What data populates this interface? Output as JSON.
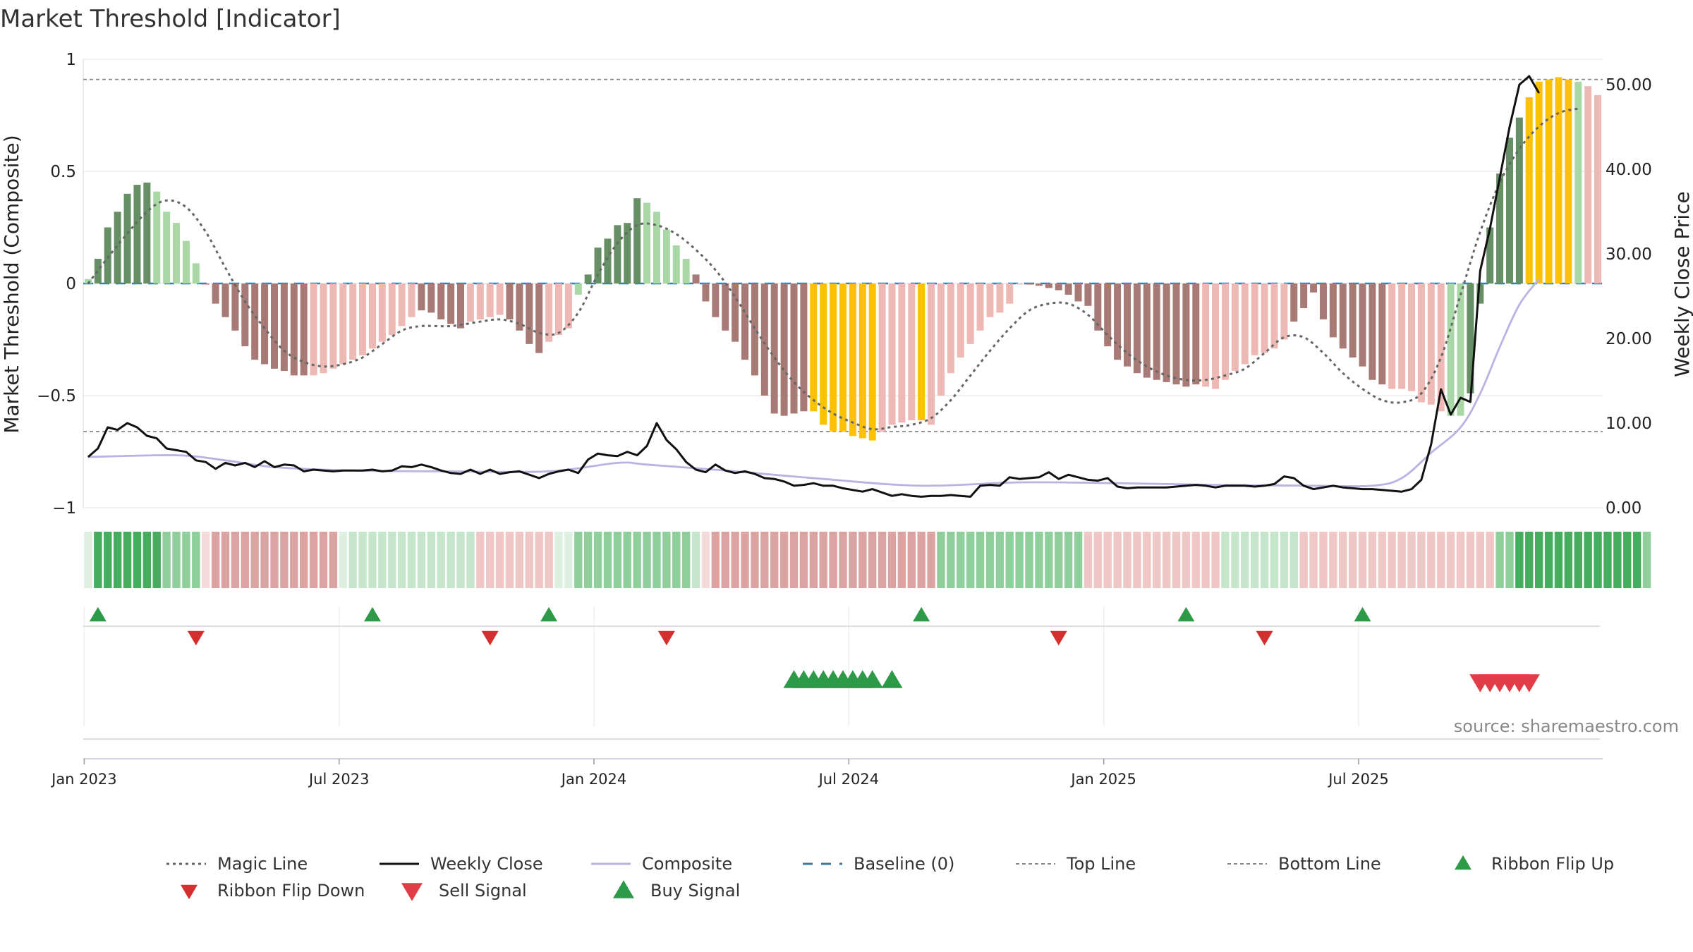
{
  "chart_data": {
    "type": "bar",
    "title": "Market Threshold [Indicator]",
    "ylabel_left": "Market Threshold (Composite)",
    "ylabel_right": "Weekly Close Price",
    "ylim_left": [
      -1,
      1
    ],
    "ylim_right": [
      0,
      53
    ],
    "yticks_left": [
      {
        "v": 1,
        "t": "1"
      },
      {
        "v": 0.5,
        "t": "0.5"
      },
      {
        "v": 0,
        "t": "0"
      },
      {
        "v": -0.5,
        "t": "−0.5"
      },
      {
        "v": -1,
        "t": "−1"
      }
    ],
    "yticks_right": [
      {
        "v": 50,
        "t": "50.00"
      },
      {
        "v": 40,
        "t": "40.00"
      },
      {
        "v": 30,
        "t": "30.00"
      },
      {
        "v": 20,
        "t": "20.00"
      },
      {
        "v": 10,
        "t": "10.00"
      },
      {
        "v": 0,
        "t": "0.00"
      }
    ],
    "xticks": [
      {
        "week": 1,
        "label": "Jan 2023"
      },
      {
        "week": 27,
        "label": "Jul 2023"
      },
      {
        "week": 53,
        "label": "Jan 2024"
      },
      {
        "week": 79,
        "label": "Jul 2024"
      },
      {
        "week": 105,
        "label": "Jan 2025"
      },
      {
        "week": 131,
        "label": "Jul 2025"
      }
    ],
    "top_line": 0.91,
    "bottom_line": -0.66,
    "baseline": 0,
    "composite": [
      0.02,
      0.11,
      0.25,
      0.32,
      0.4,
      0.44,
      0.45,
      0.41,
      0.32,
      0.27,
      0.19,
      0.09,
      0.0,
      -0.09,
      -0.15,
      -0.21,
      -0.28,
      -0.34,
      -0.36,
      -0.38,
      -0.39,
      -0.41,
      -0.41,
      -0.41,
      -0.4,
      -0.38,
      -0.36,
      -0.34,
      -0.32,
      -0.29,
      -0.26,
      -0.23,
      -0.19,
      -0.15,
      -0.12,
      -0.13,
      -0.16,
      -0.18,
      -0.2,
      -0.17,
      -0.16,
      -0.15,
      -0.14,
      -0.16,
      -0.21,
      -0.27,
      -0.31,
      -0.26,
      -0.23,
      -0.2,
      -0.05,
      0.04,
      0.16,
      0.2,
      0.26,
      0.27,
      0.38,
      0.36,
      0.32,
      0.24,
      0.17,
      0.11,
      0.04,
      -0.08,
      -0.15,
      -0.21,
      -0.26,
      -0.34,
      -0.41,
      -0.5,
      -0.58,
      -0.59,
      -0.58,
      -0.57,
      -0.57,
      -0.63,
      -0.66,
      -0.66,
      -0.68,
      -0.69,
      -0.7,
      -0.66,
      -0.63,
      -0.62,
      -0.61,
      -0.61,
      -0.63,
      -0.5,
      -0.4,
      -0.33,
      -0.27,
      -0.21,
      -0.15,
      -0.13,
      -0.09,
      0.0,
      0.0,
      -0.01,
      -0.02,
      -0.03,
      -0.05,
      -0.08,
      -0.1,
      -0.21,
      -0.28,
      -0.34,
      -0.37,
      -0.4,
      -0.42,
      -0.43,
      -0.44,
      -0.45,
      -0.46,
      -0.45,
      -0.46,
      -0.47,
      -0.43,
      -0.39,
      -0.36,
      -0.32,
      -0.31,
      -0.29,
      -0.25,
      -0.17,
      -0.11,
      -0.04,
      -0.16,
      -0.24,
      -0.29,
      -0.33,
      -0.37,
      -0.43,
      -0.45,
      -0.47,
      -0.47,
      -0.48,
      -0.53,
      -0.54,
      -0.57,
      -0.59,
      -0.59,
      -0.49,
      -0.09,
      0.25,
      0.49,
      0.65,
      0.74,
      0.83,
      0.9,
      0.91,
      0.92,
      0.91,
      0.9,
      0.88,
      0.84
    ],
    "regimes": [
      {
        "from": 1,
        "to": 1,
        "kind": "pos_light"
      },
      {
        "from": 2,
        "to": 7,
        "kind": "pos_dark"
      },
      {
        "from": 8,
        "to": 12,
        "kind": "pos_light"
      },
      {
        "from": 13,
        "to": 23,
        "kind": "neg_dark"
      },
      {
        "from": 24,
        "to": 34,
        "kind": "neg_light"
      },
      {
        "from": 35,
        "to": 39,
        "kind": "neg_dark"
      },
      {
        "from": 40,
        "to": 43,
        "kind": "neg_light"
      },
      {
        "from": 44,
        "to": 47,
        "kind": "neg_dark"
      },
      {
        "from": 48,
        "to": 50,
        "kind": "neg_light"
      },
      {
        "from": 51,
        "to": 51,
        "kind": "pos_light"
      },
      {
        "from": 52,
        "to": 57,
        "kind": "pos_dark"
      },
      {
        "from": 58,
        "to": 62,
        "kind": "pos_light"
      },
      {
        "from": 63,
        "to": 74,
        "kind": "neg_dark"
      },
      {
        "from": 75,
        "to": 81,
        "kind": "extreme"
      },
      {
        "from": 82,
        "to": 85,
        "kind": "neg_light"
      },
      {
        "from": 86,
        "to": 86,
        "kind": "extreme"
      },
      {
        "from": 87,
        "to": 96,
        "kind": "neg_light"
      },
      {
        "from": 97,
        "to": 99,
        "kind": "neg_dark"
      },
      {
        "from": 100,
        "to": 102,
        "kind": "neg_dark"
      },
      {
        "from": 103,
        "to": 114,
        "kind": "neg_dark"
      },
      {
        "from": 115,
        "to": 123,
        "kind": "neg_light"
      },
      {
        "from": 124,
        "to": 133,
        "kind": "neg_dark"
      },
      {
        "from": 134,
        "to": 139,
        "kind": "neg_light"
      },
      {
        "from": 140,
        "to": 141,
        "kind": "pos_light"
      },
      {
        "from": 142,
        "to": 147,
        "kind": "pos_dark"
      },
      {
        "from": 148,
        "to": 152,
        "kind": "extreme"
      },
      {
        "from": 153,
        "to": 153,
        "kind": "pos_light"
      }
    ],
    "magic_line": [
      {
        "w": 1,
        "v": 0.0
      },
      {
        "w": 4,
        "v": 0.17
      },
      {
        "w": 7,
        "v": 0.32
      },
      {
        "w": 9,
        "v": 0.37
      },
      {
        "w": 11,
        "v": 0.34
      },
      {
        "w": 13,
        "v": 0.23
      },
      {
        "w": 15,
        "v": 0.07
      },
      {
        "w": 17,
        "v": -0.08
      },
      {
        "w": 19,
        "v": -0.2
      },
      {
        "w": 21,
        "v": -0.3
      },
      {
        "w": 23,
        "v": -0.35
      },
      {
        "w": 25,
        "v": -0.37
      },
      {
        "w": 27,
        "v": -0.36
      },
      {
        "w": 29,
        "v": -0.33
      },
      {
        "w": 31,
        "v": -0.27
      },
      {
        "w": 33,
        "v": -0.21
      },
      {
        "w": 35,
        "v": -0.19
      },
      {
        "w": 38,
        "v": -0.19
      },
      {
        "w": 41,
        "v": -0.17
      },
      {
        "w": 43,
        "v": -0.16
      },
      {
        "w": 45,
        "v": -0.18
      },
      {
        "w": 47,
        "v": -0.22
      },
      {
        "w": 49,
        "v": -0.22
      },
      {
        "w": 51,
        "v": -0.13
      },
      {
        "w": 53,
        "v": 0.04
      },
      {
        "w": 55,
        "v": 0.18
      },
      {
        "w": 57,
        "v": 0.26
      },
      {
        "w": 59,
        "v": 0.26
      },
      {
        "w": 61,
        "v": 0.22
      },
      {
        "w": 63,
        "v": 0.15
      },
      {
        "w": 65,
        "v": 0.06
      },
      {
        "w": 67,
        "v": -0.06
      },
      {
        "w": 69,
        "v": -0.2
      },
      {
        "w": 71,
        "v": -0.33
      },
      {
        "w": 73,
        "v": -0.44
      },
      {
        "w": 75,
        "v": -0.52
      },
      {
        "w": 77,
        "v": -0.58
      },
      {
        "w": 79,
        "v": -0.62
      },
      {
        "w": 81,
        "v": -0.65
      },
      {
        "w": 83,
        "v": -0.64
      },
      {
        "w": 85,
        "v": -0.63
      },
      {
        "w": 87,
        "v": -0.6
      },
      {
        "w": 89,
        "v": -0.52
      },
      {
        "w": 91,
        "v": -0.41
      },
      {
        "w": 93,
        "v": -0.3
      },
      {
        "w": 95,
        "v": -0.2
      },
      {
        "w": 97,
        "v": -0.12
      },
      {
        "w": 99,
        "v": -0.09
      },
      {
        "w": 101,
        "v": -0.09
      },
      {
        "w": 103,
        "v": -0.14
      },
      {
        "w": 105,
        "v": -0.23
      },
      {
        "w": 107,
        "v": -0.31
      },
      {
        "w": 109,
        "v": -0.37
      },
      {
        "w": 111,
        "v": -0.41
      },
      {
        "w": 113,
        "v": -0.43
      },
      {
        "w": 115,
        "v": -0.43
      },
      {
        "w": 117,
        "v": -0.41
      },
      {
        "w": 119,
        "v": -0.38
      },
      {
        "w": 121,
        "v": -0.31
      },
      {
        "w": 123,
        "v": -0.24
      },
      {
        "w": 125,
        "v": -0.24
      },
      {
        "w": 127,
        "v": -0.31
      },
      {
        "w": 129,
        "v": -0.4
      },
      {
        "w": 131,
        "v": -0.47
      },
      {
        "w": 133,
        "v": -0.52
      },
      {
        "w": 135,
        "v": -0.53
      },
      {
        "w": 137,
        "v": -0.49
      },
      {
        "w": 139,
        "v": -0.33
      },
      {
        "w": 141,
        "v": -0.05
      },
      {
        "w": 143,
        "v": 0.23
      },
      {
        "w": 145,
        "v": 0.45
      },
      {
        "w": 147,
        "v": 0.6
      },
      {
        "w": 149,
        "v": 0.7
      },
      {
        "w": 151,
        "v": 0.76
      },
      {
        "w": 153,
        "v": 0.78
      }
    ],
    "composite_line": [
      {
        "w": 1,
        "v": 6.0
      },
      {
        "w": 10,
        "v": 6.2
      },
      {
        "w": 15,
        "v": 5.6
      },
      {
        "w": 20,
        "v": 4.8
      },
      {
        "w": 28,
        "v": 4.4
      },
      {
        "w": 38,
        "v": 4.3
      },
      {
        "w": 48,
        "v": 4.3
      },
      {
        "w": 55,
        "v": 5.3
      },
      {
        "w": 58,
        "v": 5.1
      },
      {
        "w": 66,
        "v": 4.4
      },
      {
        "w": 76,
        "v": 3.4
      },
      {
        "w": 86,
        "v": 2.6
      },
      {
        "w": 96,
        "v": 3.0
      },
      {
        "w": 106,
        "v": 2.9
      },
      {
        "w": 116,
        "v": 2.7
      },
      {
        "w": 126,
        "v": 2.6
      },
      {
        "w": 132,
        "v": 2.6
      },
      {
        "w": 135,
        "v": 3.5
      },
      {
        "w": 138,
        "v": 6.5
      },
      {
        "w": 141,
        "v": 9.5
      },
      {
        "w": 143,
        "v": 13.5
      },
      {
        "w": 145,
        "v": 19.0
      },
      {
        "w": 147,
        "v": 24.0
      },
      {
        "w": 149,
        "v": 27.0
      }
    ],
    "weekly_close": [
      6.0,
      7.0,
      9.5,
      9.2,
      10.0,
      9.5,
      8.5,
      8.2,
      7.0,
      6.8,
      6.6,
      5.6,
      5.4,
      4.6,
      5.3,
      5.0,
      5.3,
      4.8,
      5.5,
      4.8,
      5.1,
      5.0,
      4.3,
      4.5,
      4.4,
      4.3,
      4.4,
      4.4,
      4.4,
      4.5,
      4.3,
      4.4,
      4.9,
      4.8,
      5.1,
      4.8,
      4.4,
      4.1,
      4.0,
      4.5,
      4.0,
      4.5,
      4.0,
      4.2,
      4.3,
      3.9,
      3.5,
      4.0,
      4.3,
      4.5,
      4.1,
      5.7,
      6.4,
      6.2,
      6.1,
      6.6,
      6.2,
      7.3,
      10.0,
      8.0,
      6.9,
      5.4,
      4.5,
      4.2,
      5.1,
      4.4,
      4.1,
      4.3,
      4.0,
      3.5,
      3.4,
      3.1,
      2.6,
      2.7,
      2.9,
      2.6,
      2.6,
      2.3,
      2.1,
      1.9,
      2.2,
      1.8,
      1.4,
      1.6,
      1.4,
      1.3,
      1.4,
      1.4,
      1.5,
      1.4,
      1.3,
      2.6,
      2.7,
      2.6,
      3.6,
      3.4,
      3.5,
      3.6,
      4.2,
      3.4,
      3.9,
      3.6,
      3.3,
      3.2,
      3.5,
      2.5,
      2.3,
      2.4,
      2.4,
      2.4,
      2.4,
      2.5,
      2.6,
      2.7,
      2.6,
      2.4,
      2.6,
      2.6,
      2.6,
      2.5,
      2.6,
      2.8,
      3.7,
      3.5,
      2.6,
      2.2,
      2.4,
      2.6,
      2.4,
      2.3,
      2.2,
      2.2,
      2.1,
      2.0,
      1.9,
      2.2,
      3.3,
      7.5,
      14.0,
      11.0,
      13.0,
      12.5,
      28.0,
      33.0,
      39.0,
      45.0,
      50.0,
      51.0,
      49.0
    ],
    "ribbon": [
      "pos_xlight",
      "pos_dark",
      "pos_dark",
      "pos_dark",
      "pos_dark",
      "pos_dark",
      "pos_dark",
      "pos_dark",
      "pos_mid",
      "pos_mid",
      "pos_mid",
      "pos_mid",
      "neg_xlight",
      "neg_mid",
      "neg_mid",
      "neg_mid",
      "neg_mid",
      "neg_mid",
      "neg_mid",
      "neg_mid",
      "neg_mid",
      "neg_mid",
      "neg_mid",
      "neg_mid",
      "neg_mid",
      "neg_mid",
      "pos_xlight",
      "pos_light",
      "pos_light",
      "pos_light",
      "pos_light",
      "pos_light",
      "pos_light",
      "pos_light",
      "pos_light",
      "pos_light",
      "pos_light",
      "pos_light",
      "pos_light",
      "pos_light",
      "neg_light",
      "neg_light",
      "neg_light",
      "neg_light",
      "neg_light",
      "neg_light",
      "neg_light",
      "neg_light",
      "pos_xlight",
      "pos_xlight",
      "pos_mid",
      "pos_mid",
      "pos_mid",
      "pos_mid",
      "pos_mid",
      "pos_mid",
      "pos_mid",
      "pos_mid",
      "pos_mid",
      "pos_mid",
      "pos_mid",
      "pos_mid",
      "pos_light",
      "neg_xlight",
      "neg_mid",
      "neg_mid",
      "neg_mid",
      "neg_mid",
      "neg_mid",
      "neg_mid",
      "neg_mid",
      "neg_mid",
      "neg_mid",
      "neg_mid",
      "neg_mid",
      "neg_mid",
      "neg_mid",
      "neg_mid",
      "neg_mid",
      "neg_mid",
      "neg_mid",
      "neg_mid",
      "neg_mid",
      "neg_mid",
      "neg_mid",
      "neg_mid",
      "neg_mid",
      "pos_mid",
      "pos_mid",
      "pos_mid",
      "pos_mid",
      "pos_mid",
      "pos_mid",
      "pos_mid",
      "pos_mid",
      "pos_mid",
      "pos_mid",
      "pos_mid",
      "pos_mid",
      "pos_mid",
      "pos_mid",
      "pos_mid",
      "neg_light",
      "neg_light",
      "neg_light",
      "neg_light",
      "neg_light",
      "neg_light",
      "neg_light",
      "neg_light",
      "neg_light",
      "neg_light",
      "neg_light",
      "neg_light",
      "neg_light",
      "neg_light",
      "pos_light",
      "pos_light",
      "pos_light",
      "pos_light",
      "pos_light",
      "pos_light",
      "pos_light",
      "pos_light",
      "neg_light",
      "neg_light",
      "neg_light",
      "neg_light",
      "neg_light",
      "neg_light",
      "neg_light",
      "neg_light",
      "neg_light",
      "neg_light",
      "neg_light",
      "neg_light",
      "neg_light",
      "neg_light",
      "neg_light",
      "neg_light",
      "neg_light",
      "neg_light",
      "neg_light",
      "neg_light",
      "pos_mid",
      "pos_mid",
      "pos_dark",
      "pos_dark",
      "pos_dark",
      "pos_dark",
      "pos_dark",
      "pos_dark",
      "pos_dark",
      "pos_dark",
      "pos_dark",
      "pos_dark",
      "pos_dark",
      "pos_dark",
      "pos_dark",
      "pos_mid"
    ],
    "ribbon_flip_up": [
      2,
      30,
      48,
      86,
      113,
      131
    ],
    "ribbon_flip_down": [
      12,
      42,
      60,
      100,
      121
    ],
    "buy_signals": [
      73,
      74,
      75,
      76,
      77,
      78,
      79,
      80,
      81,
      83
    ],
    "sell_signals": [
      143,
      144,
      145,
      146,
      147,
      148
    ],
    "colors": {
      "pos_dark": "#668f66",
      "pos_light": "#a9d8a6",
      "neg_dark": "#a87a76",
      "neg_light": "#eeb9b4",
      "extreme": "#fbc102",
      "ribbon_pos_dark": "#46ac5e",
      "ribbon_pos_mid": "#8fcf9c",
      "ribbon_pos_light": "#c6e6cb",
      "ribbon_pos_xlight": "#ddefe0",
      "ribbon_neg_mid": "#dca3a3",
      "ribbon_neg_light": "#eec7c6",
      "ribbon_neg_xlight": "#f4dada",
      "flip_up": "#2c9a47",
      "flip_down": "#d32f2f",
      "sell": "#e03d47",
      "buy": "#2c9a47",
      "weekly_close": "#111111",
      "composite": "#b9b3e3",
      "magic": "#666666",
      "baseline": "#3a7aa6",
      "threshold": "#888888"
    },
    "source": "source: sharemaestro.com",
    "legend": [
      {
        "key": "magic",
        "label": "Magic Line",
        "style": "dotted"
      },
      {
        "key": "weekly_close",
        "label": "Weekly Close",
        "style": "solid"
      },
      {
        "key": "composite",
        "label": "Composite",
        "style": "solid_light"
      },
      {
        "key": "baseline",
        "label": "Baseline (0)",
        "style": "dashed"
      },
      {
        "key": "top",
        "label": "Top Line",
        "style": "fine_dash"
      },
      {
        "key": "bottom",
        "label": "Bottom Line",
        "style": "fine_dash"
      },
      {
        "key": "flip_up",
        "label": "Ribbon Flip Up",
        "style": "tri_up_small"
      },
      {
        "key": "flip_down",
        "label": "Ribbon Flip Down",
        "style": "tri_down_small"
      },
      {
        "key": "sell",
        "label": "Sell Signal",
        "style": "tri_down"
      },
      {
        "key": "buy",
        "label": "Buy Signal",
        "style": "tri_up"
      }
    ]
  }
}
